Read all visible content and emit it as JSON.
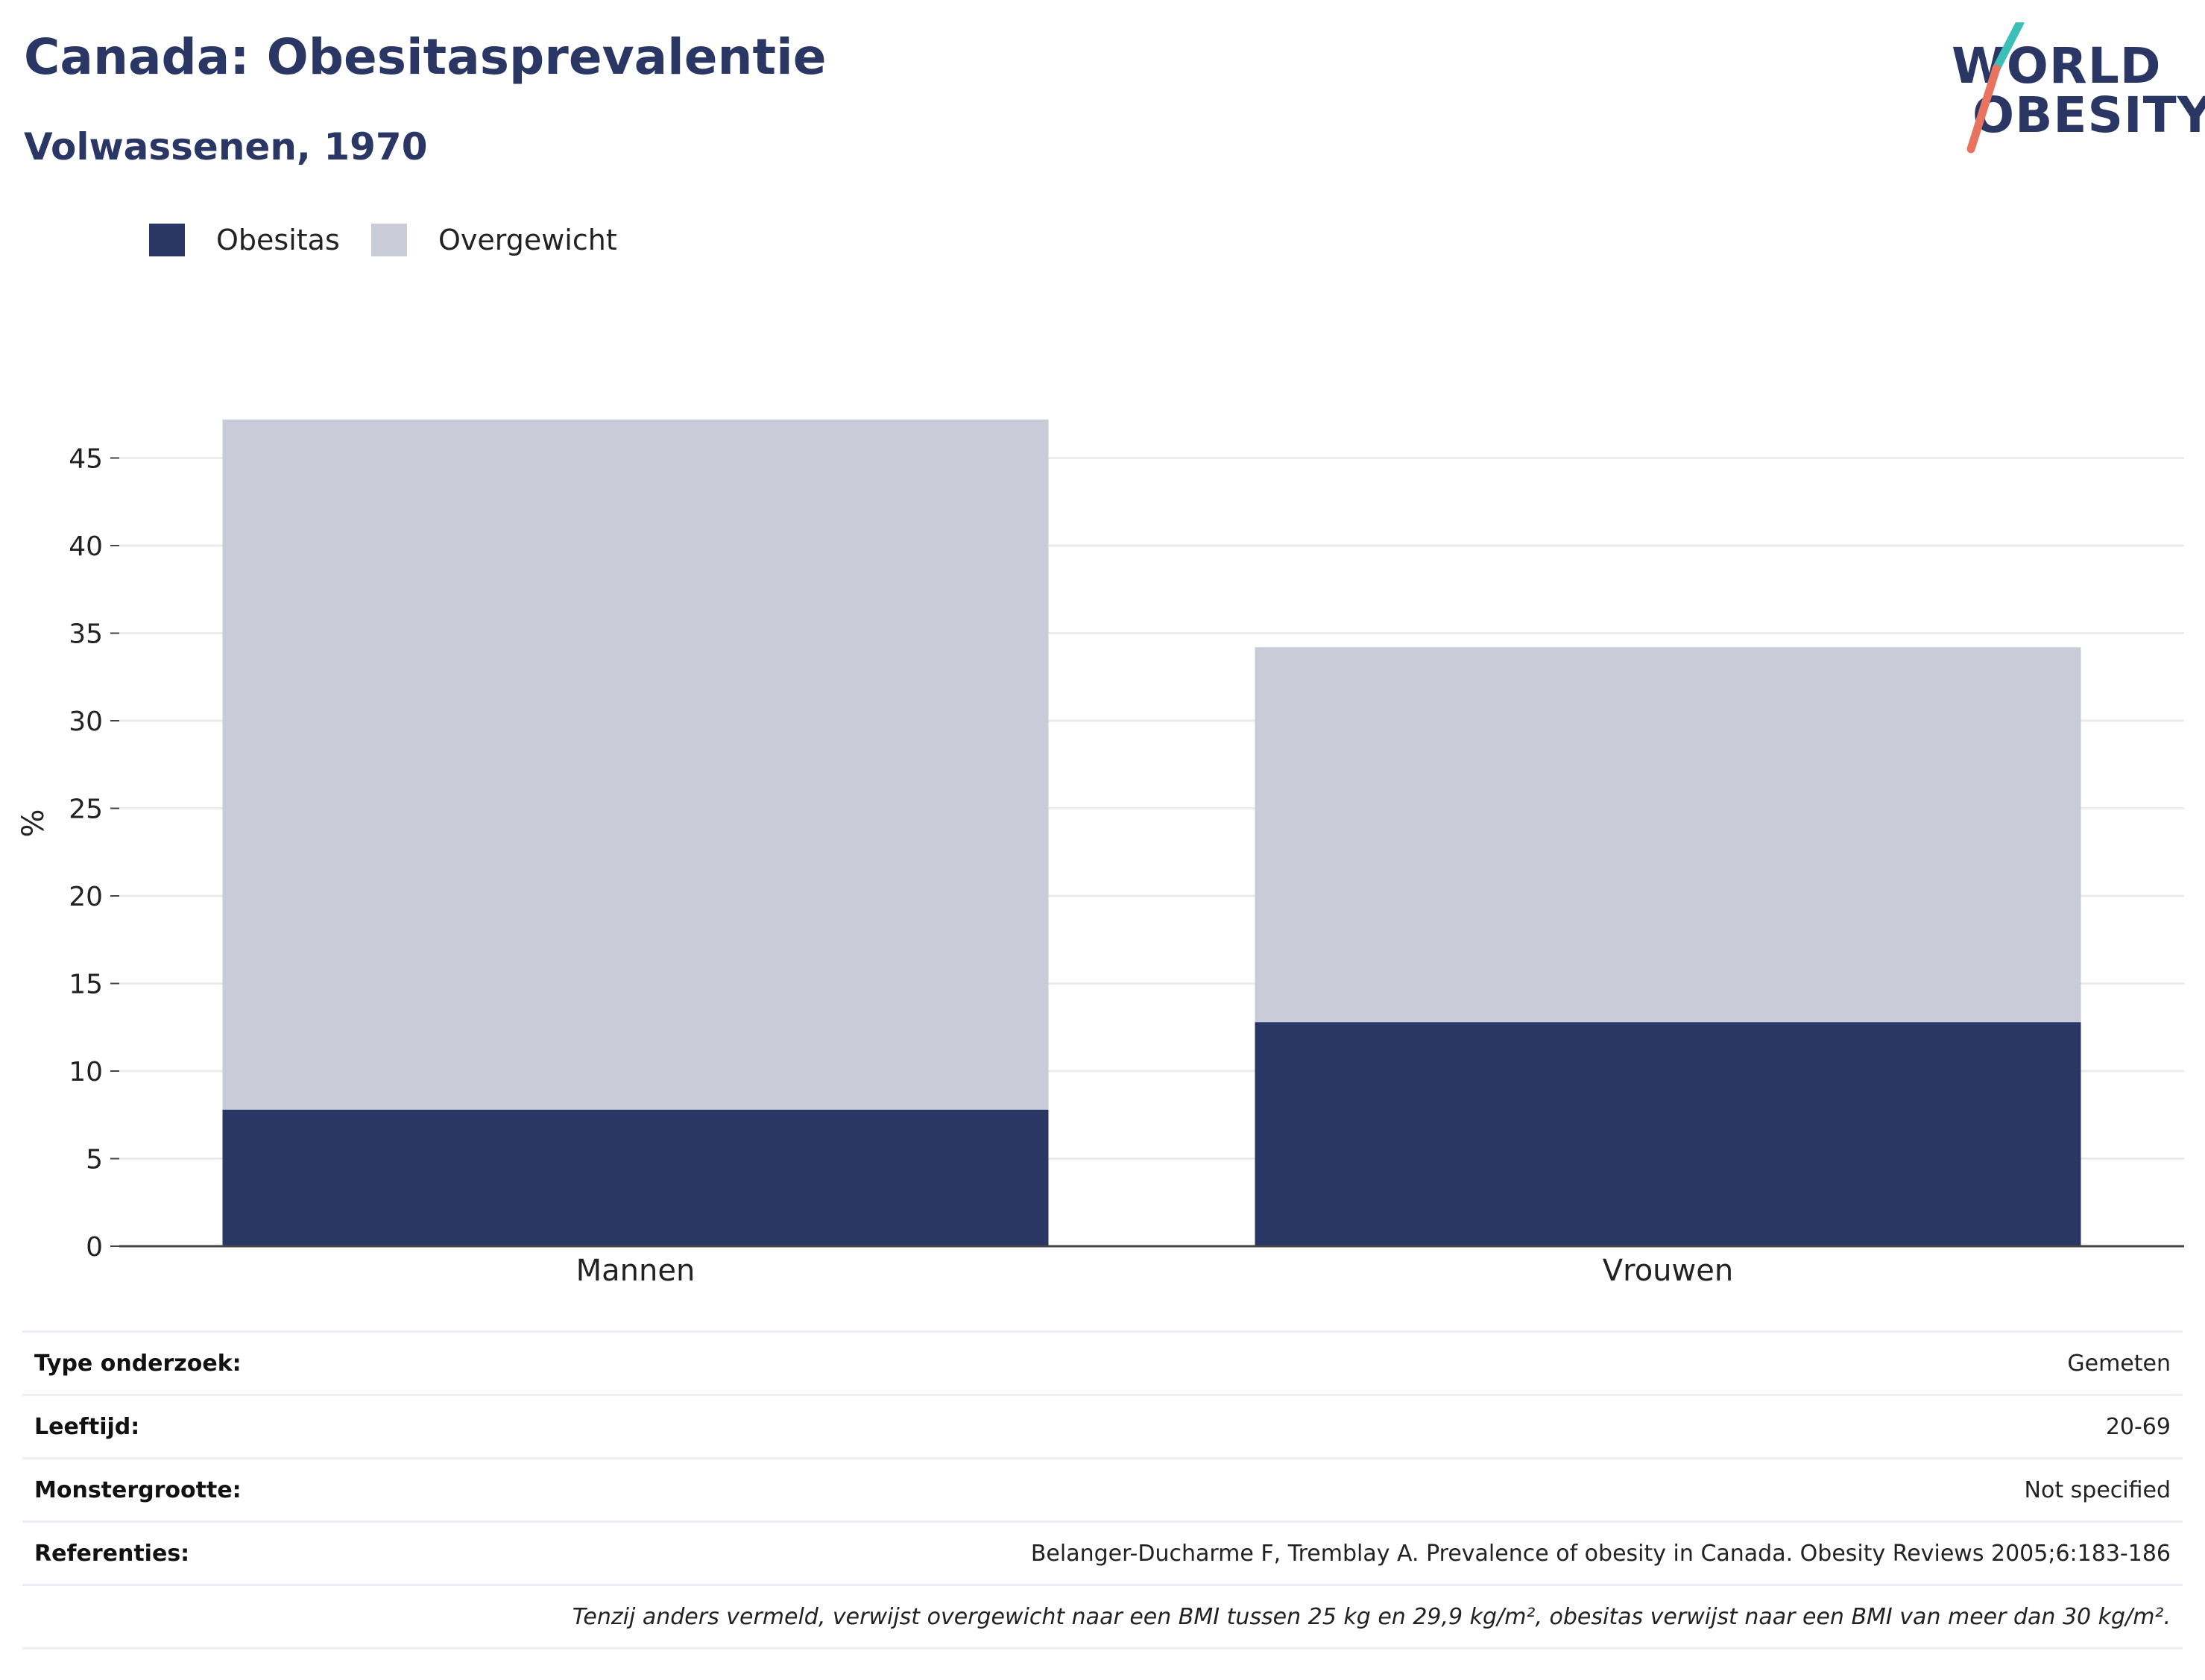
{
  "header": {
    "title": "Canada: Obesitasprevalentie",
    "subtitle": "Volwassenen, 1970"
  },
  "logo": {
    "line1": "WORLD",
    "line2": "OBESITY",
    "colors": {
      "text": "#2a3664",
      "slash_top": "#3bbfb8",
      "slash_bottom": "#e8735f"
    }
  },
  "legend": {
    "items": [
      {
        "label": "Obesitas",
        "color": "#2a3664"
      },
      {
        "label": "Overgewicht",
        "color": "#c9ccd8"
      }
    ]
  },
  "chart_data": {
    "type": "bar",
    "stacked": true,
    "categories": [
      "Mannen",
      "Vrouwen"
    ],
    "series": [
      {
        "name": "Obesitas",
        "values": [
          7.8,
          12.8
        ],
        "color": "#2a3664"
      },
      {
        "name": "Overgewicht",
        "values": [
          39.4,
          21.4
        ],
        "color": "#c9ccd8"
      }
    ],
    "xlabel": "",
    "ylabel": "%",
    "ylim": [
      0,
      47.5
    ],
    "yticks": [
      0,
      5,
      10,
      15,
      20,
      25,
      30,
      35,
      40,
      45
    ],
    "grid": true,
    "legend_position": "top-left"
  },
  "info": {
    "rows": [
      {
        "key": "Type onderzoek:",
        "value": "Gemeten"
      },
      {
        "key": "Leeftijd:",
        "value": "20-69"
      },
      {
        "key": "Monstergrootte:",
        "value": "Not specified"
      },
      {
        "key": "Referenties:",
        "value": "Belanger-Ducharme F, Tremblay A. Prevalence of obesity in Canada. Obesity Reviews 2005;6:183-186"
      }
    ],
    "note": "Tenzij anders vermeld, verwijst overgewicht naar een BMI tussen 25 kg en 29,9 kg/m², obesitas verwijst naar een BMI van meer dan 30 kg/m²."
  }
}
